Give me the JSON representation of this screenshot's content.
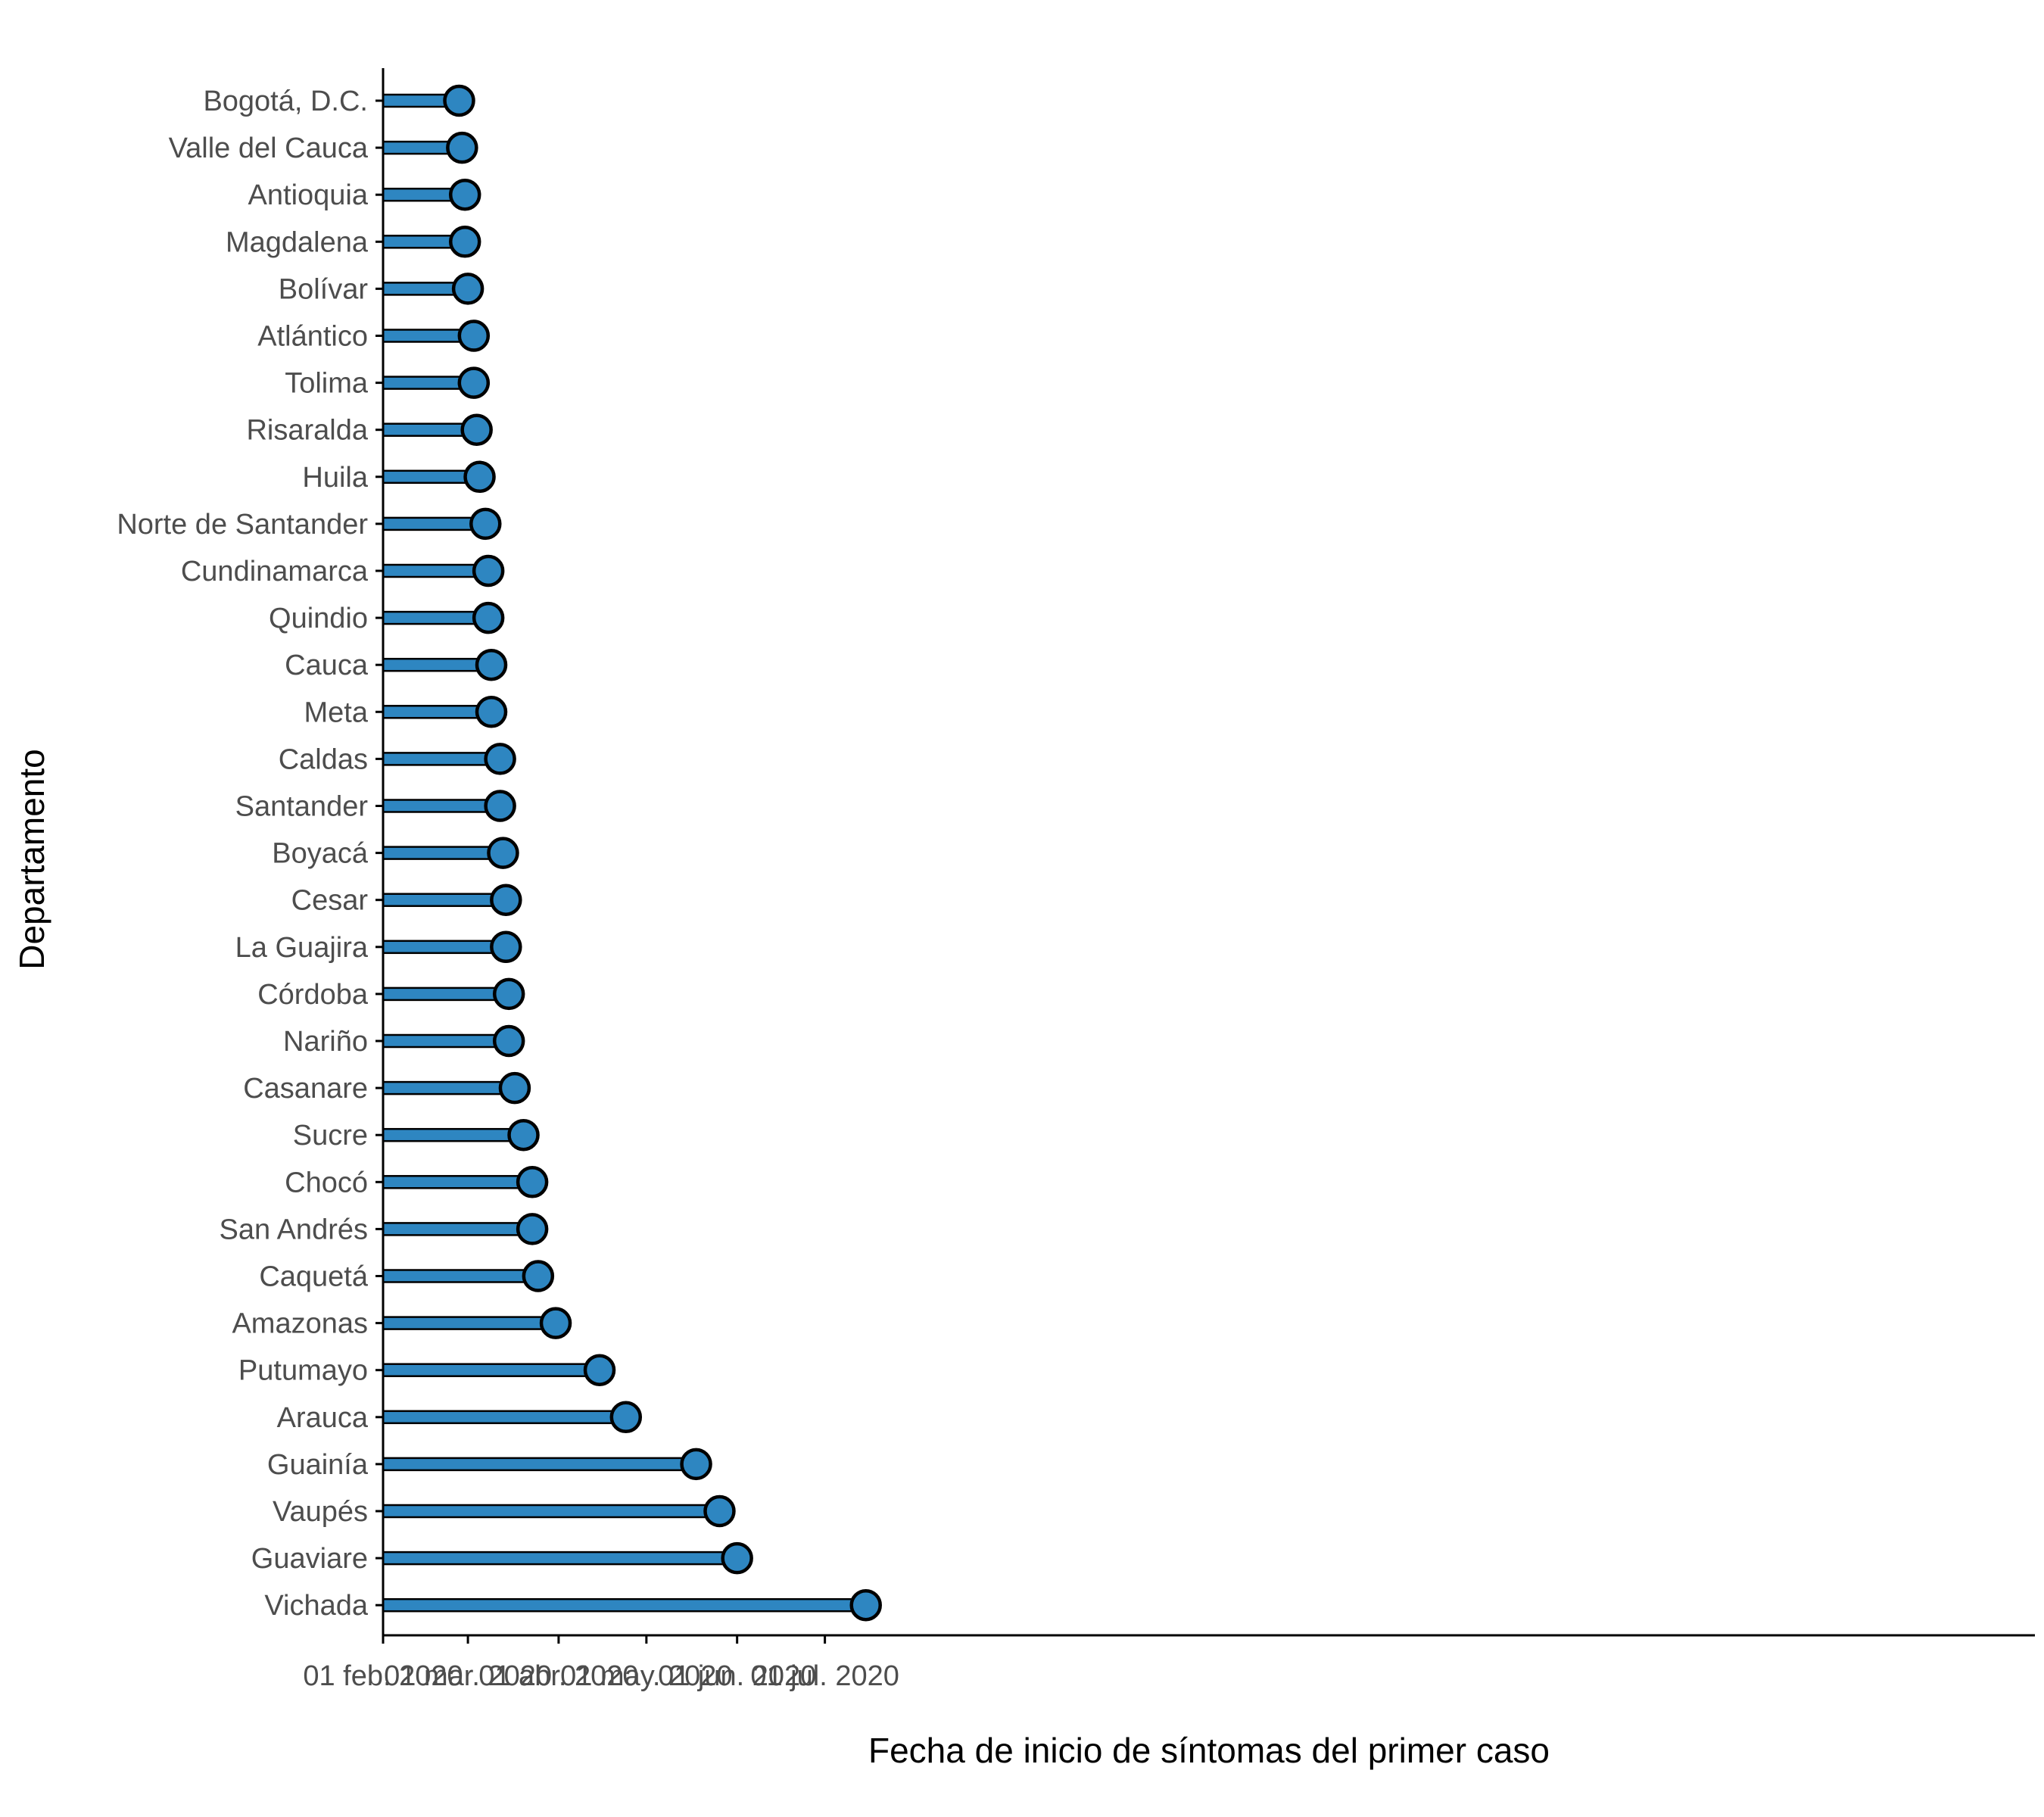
{
  "chart_data": {
    "type": "lollipop",
    "xlabel": "Fecha de inicio de síntomas del primer caso",
    "ylabel": "Departamento",
    "x_axis": {
      "type": "date",
      "range": [
        "2020-02-01",
        "2020-07-17"
      ],
      "ticks": [
        {
          "date": "2020-02-01",
          "label": "01 feb. 2020"
        },
        {
          "date": "2020-03-01",
          "label": "01 mar. 2020"
        },
        {
          "date": "2020-04-01",
          "label": "01 abr. 2020"
        },
        {
          "date": "2020-05-01",
          "label": "01 may. 2020"
        },
        {
          "date": "2020-06-01",
          "label": "01 jun. 2020"
        },
        {
          "date": "2020-07-01",
          "label": "01 jul. 2020"
        }
      ]
    },
    "grid": false,
    "colors": {
      "fill": "#2e86c1",
      "stroke": "#000000"
    },
    "data": [
      {
        "name": "Bogotá, D.C.",
        "date": "2020-02-27"
      },
      {
        "name": "Valle del Cauca",
        "date": "2020-02-28"
      },
      {
        "name": "Antioquia",
        "date": "2020-02-29"
      },
      {
        "name": "Magdalena",
        "date": "2020-02-29"
      },
      {
        "name": "Bolívar",
        "date": "2020-03-01"
      },
      {
        "name": "Atlántico",
        "date": "2020-03-03"
      },
      {
        "name": "Tolima",
        "date": "2020-03-03"
      },
      {
        "name": "Risaralda",
        "date": "2020-03-04"
      },
      {
        "name": "Huila",
        "date": "2020-03-05"
      },
      {
        "name": "Norte de Santander",
        "date": "2020-03-07"
      },
      {
        "name": "Cundinamarca",
        "date": "2020-03-08"
      },
      {
        "name": "Quindio",
        "date": "2020-03-08"
      },
      {
        "name": "Cauca",
        "date": "2020-03-09"
      },
      {
        "name": "Meta",
        "date": "2020-03-09"
      },
      {
        "name": "Caldas",
        "date": "2020-03-12"
      },
      {
        "name": "Santander",
        "date": "2020-03-12"
      },
      {
        "name": "Boyacá",
        "date": "2020-03-13"
      },
      {
        "name": "Cesar",
        "date": "2020-03-14"
      },
      {
        "name": "La Guajira",
        "date": "2020-03-14"
      },
      {
        "name": "Córdoba",
        "date": "2020-03-15"
      },
      {
        "name": "Nariño",
        "date": "2020-03-15"
      },
      {
        "name": "Casanare",
        "date": "2020-03-17"
      },
      {
        "name": "Sucre",
        "date": "2020-03-20"
      },
      {
        "name": "Chocó",
        "date": "2020-03-23"
      },
      {
        "name": "San Andrés",
        "date": "2020-03-23"
      },
      {
        "name": "Caquetá",
        "date": "2020-03-25"
      },
      {
        "name": "Amazonas",
        "date": "2020-03-31"
      },
      {
        "name": "Putumayo",
        "date": "2020-04-15"
      },
      {
        "name": "Arauca",
        "date": "2020-04-24"
      },
      {
        "name": "Guainía",
        "date": "2020-05-18"
      },
      {
        "name": "Vaupés",
        "date": "2020-05-26"
      },
      {
        "name": "Guaviare",
        "date": "2020-06-01"
      },
      {
        "name": "Vichada",
        "date": "2020-07-15"
      }
    ]
  }
}
